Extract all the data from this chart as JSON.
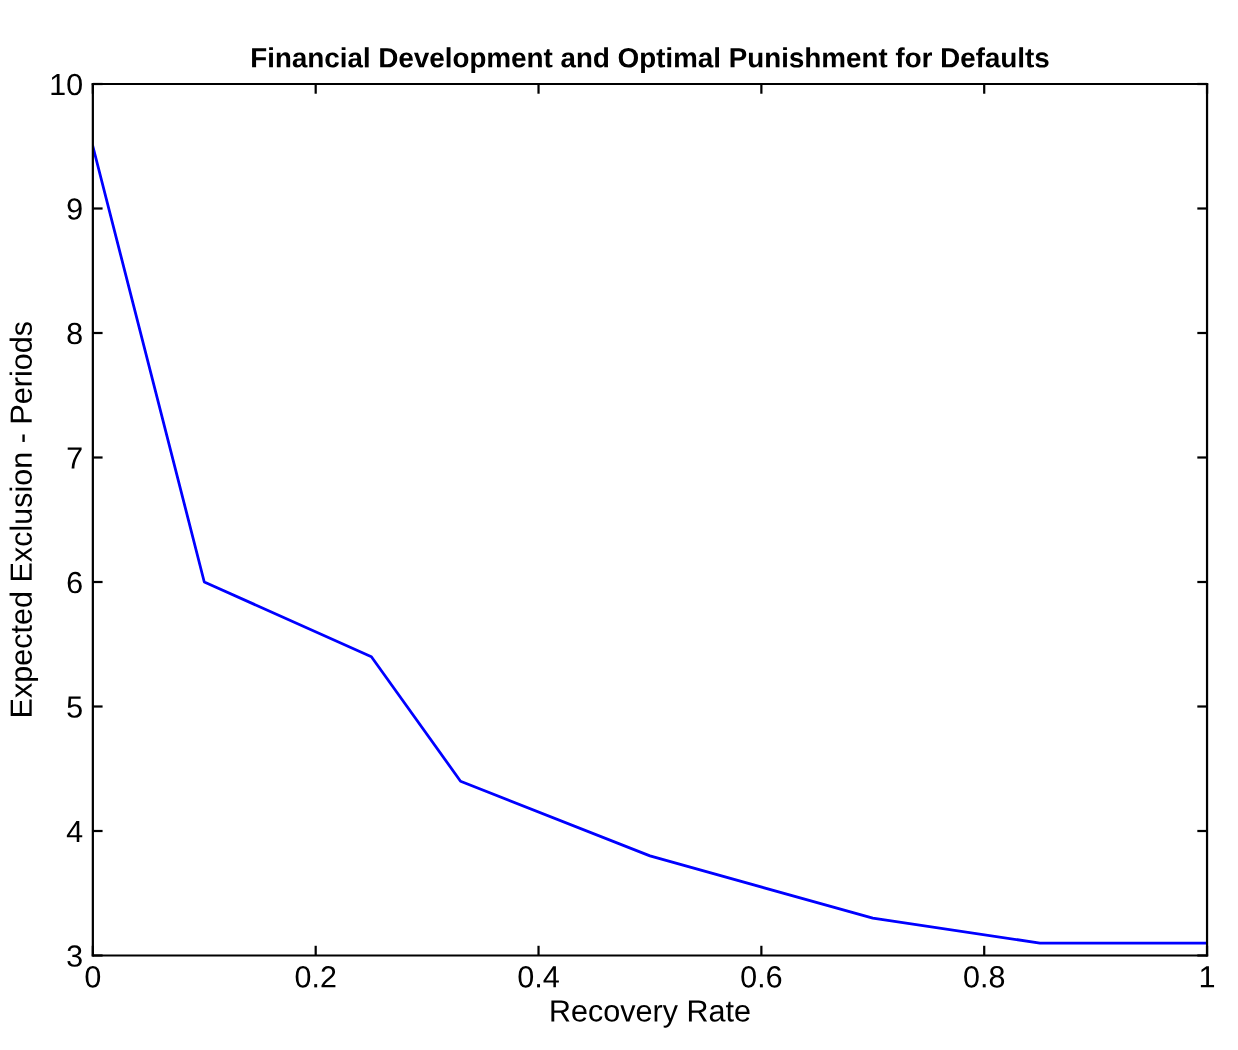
{
  "chart_data": {
    "type": "line",
    "title": "Financial Development and Optimal Punishment for Defaults",
    "xlabel": "Recovery Rate",
    "ylabel": "Expected Exclusion - Periods",
    "x": [
      0,
      0.1,
      0.25,
      0.33,
      0.5,
      0.7,
      0.85,
      1
    ],
    "series": [
      {
        "color": "#0000ff",
        "values": [
          9.5,
          6.0,
          5.4,
          4.4,
          3.8,
          3.3,
          3.1,
          3.1
        ]
      }
    ],
    "xlim": [
      0,
      1
    ],
    "ylim": [
      3,
      10
    ],
    "xticks": [
      0,
      0.2,
      0.4,
      0.6,
      0.8,
      1
    ],
    "yticks": [
      3,
      4,
      5,
      6,
      7,
      8,
      9,
      10
    ],
    "grid": false,
    "legend": false,
    "marker": "none",
    "line_style": "solid"
  }
}
